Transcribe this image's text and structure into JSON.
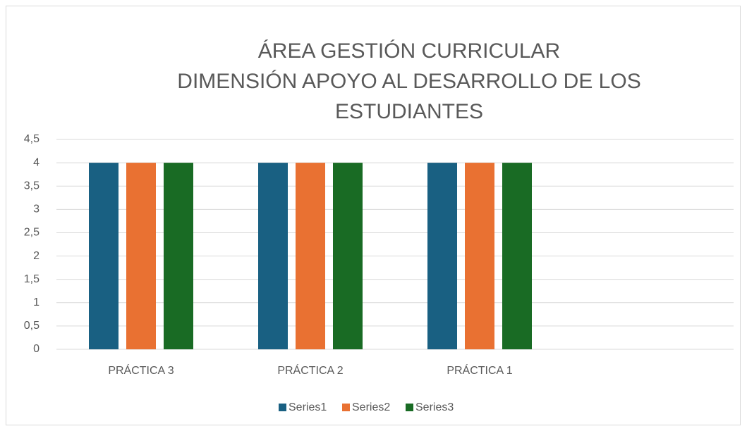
{
  "chart_data": {
    "type": "bar",
    "title": [
      "ÁREA GESTIÓN CURRICULAR",
      "DIMENSIÓN APOYO AL DESARROLLO DE LOS",
      "ESTUDIANTES"
    ],
    "categories": [
      "PRÁCTICA 3",
      "PRÁCTICA 2",
      "PRÁCTICA 1",
      null
    ],
    "series": [
      {
        "name": "Series1",
        "color": "#196082",
        "values": [
          4,
          4,
          4,
          null
        ]
      },
      {
        "name": "Series2",
        "color": "#e97132",
        "values": [
          4,
          4,
          4,
          null
        ]
      },
      {
        "name": "Series3",
        "color": "#196b24",
        "values": [
          4,
          4,
          4,
          null
        ]
      }
    ],
    "ylim": [
      0,
      4.5
    ],
    "yticks": [
      0,
      {
        "value": 0.5,
        "label": "0,5"
      },
      1,
      {
        "value": 1.5,
        "label": "1,5"
      },
      2,
      {
        "value": 2.5,
        "label": "2,5"
      },
      3,
      {
        "value": 3.5,
        "label": "3,5"
      },
      4,
      {
        "value": 4.5,
        "label": "4,5"
      }
    ],
    "grid": true,
    "legend": "bottom"
  }
}
